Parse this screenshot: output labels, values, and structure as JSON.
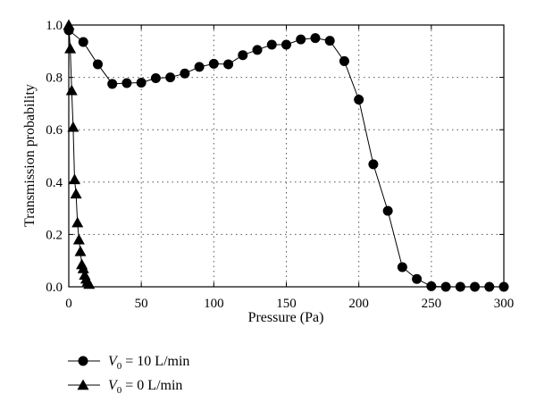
{
  "chart_data": {
    "type": "scatter",
    "xlabel": "Pressure (Pa)",
    "ylabel": "Transmission probability",
    "xlim": [
      0,
      300
    ],
    "ylim": [
      0,
      1.0
    ],
    "x_ticks": [
      0,
      50,
      100,
      150,
      200,
      250,
      300
    ],
    "y_ticks": [
      0.0,
      0.2,
      0.4,
      0.6,
      0.8,
      1.0
    ],
    "x_tick_labels": [
      "0",
      "50",
      "100",
      "150",
      "200",
      "250",
      "300"
    ],
    "y_tick_labels": [
      "0.0",
      "0.2",
      "0.4",
      "0.6",
      "0.8",
      "1.0"
    ],
    "grid": true,
    "legend_position": "bottom-left, below plot",
    "series": [
      {
        "legend_prefix": "V",
        "legend_subscript": "0",
        "legend_suffix": " = 10 L/min",
        "marker": "circle",
        "x": [
          0,
          10,
          20,
          30,
          40,
          50,
          60,
          70,
          80,
          90,
          100,
          110,
          120,
          130,
          140,
          150,
          160,
          170,
          180,
          190,
          200,
          210,
          220,
          230,
          240,
          250,
          260,
          270,
          280,
          290,
          300
        ],
        "y": [
          0.98,
          0.935,
          0.85,
          0.775,
          0.778,
          0.78,
          0.797,
          0.8,
          0.815,
          0.84,
          0.852,
          0.85,
          0.885,
          0.905,
          0.925,
          0.925,
          0.945,
          0.95,
          0.94,
          0.862,
          0.715,
          0.468,
          0.29,
          0.075,
          0.03,
          0.002,
          0.0,
          0.0,
          0.0,
          0.0,
          0.0
        ]
      },
      {
        "legend_prefix": "V",
        "legend_subscript": "0",
        "legend_suffix": " = 0 L/min",
        "marker": "triangle",
        "x": [
          0,
          1,
          2,
          3,
          4,
          5,
          6,
          7,
          8,
          9,
          10,
          11,
          12,
          13,
          14
        ],
        "y": [
          1.0,
          0.91,
          0.75,
          0.61,
          0.41,
          0.355,
          0.245,
          0.18,
          0.135,
          0.085,
          0.07,
          0.045,
          0.03,
          0.02,
          0.01
        ]
      }
    ]
  }
}
